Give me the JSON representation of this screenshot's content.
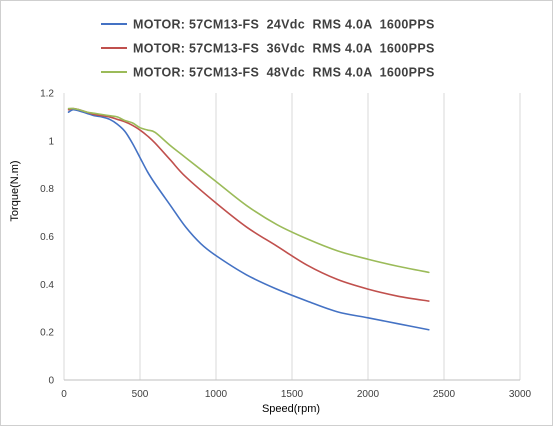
{
  "chart_data": {
    "type": "line",
    "xlabel": "Speed(rpm)",
    "ylabel": "Torque(N.m)",
    "xlim": [
      0,
      3000
    ],
    "ylim": [
      0,
      1.2
    ],
    "xticks": [
      "0",
      "500",
      "1000",
      "1500",
      "2000",
      "2500",
      "3000"
    ],
    "yticks": [
      "0",
      "0.2",
      "0.4",
      "0.6",
      "0.8",
      "1",
      "1.2"
    ],
    "grid": "vertical",
    "legend_position": "top",
    "series": [
      {
        "name": "MOTOR: 57CM13-FS  24Vdc  RMS 4.0A  1600PPS",
        "color": "#4472c4",
        "x": [
          30,
          60,
          100,
          150,
          200,
          250,
          300,
          350,
          400,
          450,
          500,
          550,
          600,
          700,
          800,
          900,
          1000,
          1200,
          1400,
          1600,
          1800,
          2000,
          2200,
          2400
        ],
        "y": [
          1.12,
          1.13,
          1.125,
          1.115,
          1.105,
          1.1,
          1.09,
          1.07,
          1.04,
          0.99,
          0.93,
          0.87,
          0.82,
          0.73,
          0.64,
          0.57,
          0.52,
          0.44,
          0.38,
          0.33,
          0.285,
          0.26,
          0.235,
          0.21
        ]
      },
      {
        "name": "MOTOR: 57CM13-FS  36Vdc  RMS 4.0A  1600PPS",
        "color": "#c0504d",
        "x": [
          30,
          60,
          100,
          150,
          200,
          250,
          300,
          350,
          400,
          450,
          500,
          550,
          600,
          700,
          800,
          1000,
          1200,
          1400,
          1600,
          1800,
          2000,
          2200,
          2400
        ],
        "y": [
          1.13,
          1.135,
          1.13,
          1.12,
          1.11,
          1.105,
          1.1,
          1.09,
          1.08,
          1.065,
          1.045,
          1.02,
          0.99,
          0.92,
          0.85,
          0.74,
          0.64,
          0.56,
          0.48,
          0.42,
          0.38,
          0.35,
          0.33
        ]
      },
      {
        "name": "MOTOR: 57CM13-FS  48Vdc  RMS 4.0A  1600PPS",
        "color": "#9bbb59",
        "x": [
          30,
          60,
          100,
          150,
          200,
          250,
          300,
          350,
          400,
          450,
          500,
          550,
          600,
          700,
          800,
          1000,
          1200,
          1400,
          1600,
          1800,
          2000,
          2200,
          2400
        ],
        "y": [
          1.135,
          1.135,
          1.13,
          1.12,
          1.115,
          1.11,
          1.105,
          1.1,
          1.085,
          1.075,
          1.055,
          1.045,
          1.035,
          0.98,
          0.93,
          0.83,
          0.73,
          0.65,
          0.59,
          0.54,
          0.505,
          0.475,
          0.45
        ]
      }
    ]
  }
}
